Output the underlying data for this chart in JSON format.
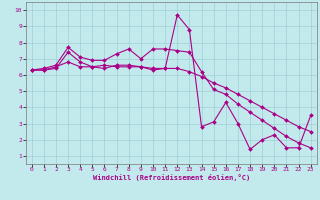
{
  "xlabel": "Windchill (Refroidissement éolien,°C)",
  "bg_color": "#c2eaec",
  "grid_color": "#a0d0d4",
  "line_color": "#aa0088",
  "xlim": [
    -0.5,
    23.5
  ],
  "ylim": [
    0.5,
    10.5
  ],
  "xticks": [
    0,
    1,
    2,
    3,
    4,
    5,
    6,
    7,
    8,
    9,
    10,
    11,
    12,
    13,
    14,
    15,
    16,
    17,
    18,
    19,
    20,
    21,
    22,
    23
  ],
  "yticks": [
    1,
    2,
    3,
    4,
    5,
    6,
    7,
    8,
    9,
    10
  ],
  "line1_x": [
    0,
    1,
    2,
    3,
    4,
    5,
    6,
    7,
    8,
    9,
    10,
    11,
    12,
    13,
    14,
    15,
    16,
    17,
    18,
    19,
    20,
    21,
    22,
    23
  ],
  "line1_y": [
    6.3,
    6.3,
    6.4,
    7.4,
    6.8,
    6.5,
    6.4,
    6.6,
    6.6,
    6.5,
    6.3,
    6.4,
    9.7,
    8.8,
    2.8,
    3.1,
    4.3,
    3.0,
    1.4,
    2.0,
    2.3,
    1.5,
    1.5,
    3.5
  ],
  "line2_x": [
    0,
    1,
    2,
    3,
    4,
    5,
    6,
    7,
    8,
    9,
    10,
    11,
    12,
    13,
    14,
    15,
    16,
    17,
    18,
    19,
    20,
    21,
    22,
    23
  ],
  "line2_y": [
    6.3,
    6.4,
    6.6,
    7.7,
    7.1,
    6.9,
    6.9,
    7.3,
    7.6,
    7.0,
    7.6,
    7.6,
    7.5,
    7.4,
    6.2,
    5.1,
    4.8,
    4.2,
    3.7,
    3.2,
    2.7,
    2.2,
    1.8,
    1.5
  ],
  "line3_x": [
    0,
    1,
    2,
    3,
    4,
    5,
    6,
    7,
    8,
    9,
    10,
    11,
    12,
    13,
    14,
    15,
    16,
    17,
    18,
    19,
    20,
    21,
    22,
    23
  ],
  "line3_y": [
    6.3,
    6.3,
    6.5,
    6.8,
    6.5,
    6.5,
    6.6,
    6.5,
    6.5,
    6.5,
    6.4,
    6.4,
    6.4,
    6.2,
    5.9,
    5.5,
    5.2,
    4.8,
    4.4,
    4.0,
    3.6,
    3.2,
    2.8,
    2.5
  ]
}
